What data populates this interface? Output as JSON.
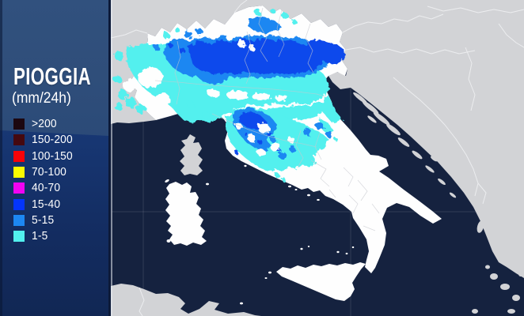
{
  "panel": {
    "title": "PIOGGIA",
    "subtitle": "(mm/24h)",
    "legend": [
      {
        "label": ">200",
        "color": "#1c0710"
      },
      {
        "label": "150-200",
        "color": "#45090f"
      },
      {
        "label": "100-150",
        "color": "#f70308"
      },
      {
        "label": "70-100",
        "color": "#fafc00"
      },
      {
        "label": "40-70",
        "color": "#f203f2"
      },
      {
        "label": "15-40",
        "color": "#0435fc"
      },
      {
        "label": "5-15",
        "color": "#1d87f2"
      },
      {
        "label": "1-5",
        "color": "#52f0ee"
      }
    ]
  },
  "map": {
    "description": "Weather map of Italy showing 24h rainfall: heavy blue band over the Alps and Po valley (15-40 mm), cyan 1-5 mm across the northern plain, a blue/cyan cluster over Tuscany and central Italy; southern Italy, Sicily and Sardinia dry (white). Surrounding countries gray, sea dark navy.",
    "rain_coverage": "Northern Italy and Tuscany/Umbria/Marche; dry in the south"
  },
  "colors": {
    "sea": "#15223f",
    "land_other": "#d2d3d6",
    "land_italy": "#fefefe",
    "border_country": "#f3f4f6",
    "border_region": "#c7c9cf",
    "rain_low": "#52f0ee",
    "rain_mid": "#1d87f2",
    "rain_high": "#0a49ec",
    "panel_top": "#2f4e7a",
    "panel_mid": "#1f4382",
    "panel_bottom": "#112754"
  }
}
